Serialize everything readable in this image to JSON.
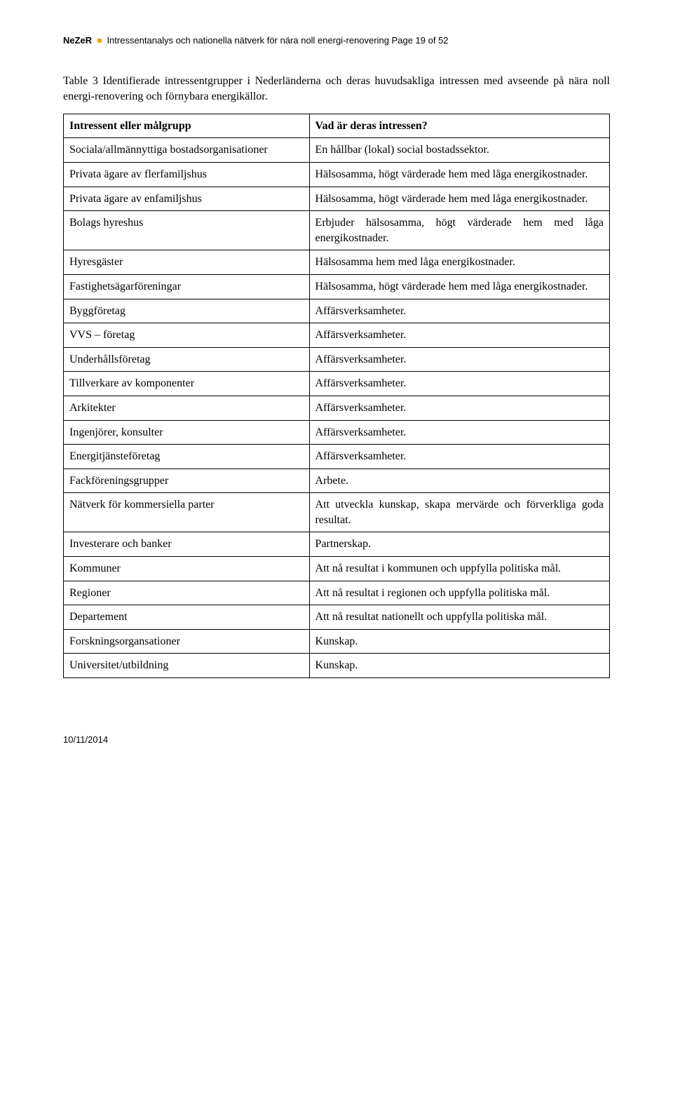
{
  "runningHead": {
    "brand": "NeZeR",
    "subtitle": "Intressentanalys och nationella nätverk för nära noll energi-renovering",
    "pageLabel": "Page 19 of 52"
  },
  "caption": "Table 3 Identifierade intressentgrupper i Nederländerna och deras huvudsakliga intressen med avseende på nära noll energi-renovering och förnybara energikällor.",
  "table": {
    "header": {
      "left": "Intressent eller målgrupp",
      "right": "Vad är deras intressen?"
    },
    "rows": [
      {
        "left": "Sociala/allmännyttiga bostadsorganisationer",
        "right": "En hållbar (lokal) social bostadssektor.",
        "nb_b": true
      },
      {
        "left": "Privata ägare av flerfamiljshus",
        "right": "Hälsosamma, högt värderade hem med låga energikostnader.",
        "nb_t": true,
        "nb_b": true
      },
      {
        "left": "Privata ägare av enfamiljshus",
        "right": "Hälsosamma, högt värderade hem med låga energikostnader.",
        "nb_t": true,
        "nb_b": true
      },
      {
        "left": "Bolags hyreshus",
        "right": "Erbjuder hälsosamma, högt värderade hem med låga energikostnader.",
        "nb_t": true,
        "nb_b": true
      },
      {
        "left": "Hyresgäster",
        "right": "Hälsosamma hem med låga energikostnader.",
        "nb_t": true
      },
      {
        "left": "Fastighetsägarföreningar",
        "right": "Hälsosamma, högt värderade hem med låga energikostnader.",
        "nb_b": true
      },
      {
        "left": "Byggföretag",
        "right": "Affärsverksamheter.",
        "nb_t": true
      },
      {
        "left": "VVS – företag",
        "right": "Affärsverksamheter."
      },
      {
        "left": "Underhållsföretag",
        "right": "Affärsverksamheter."
      },
      {
        "left": "Tillverkare av komponenter",
        "right": "Affärsverksamheter."
      },
      {
        "left": "Arkitekter",
        "right": "Affärsverksamheter."
      },
      {
        "left": "Ingenjörer, konsulter",
        "right": "Affärsverksamheter."
      },
      {
        "left": "Energitjänsteföretag",
        "right": "Affärsverksamheter."
      },
      {
        "left": "Fackföreningsgrupper",
        "right": "Arbete."
      },
      {
        "left": "Nätverk för kommersiella parter",
        "right": "Att utveckla kunskap, skapa mervärde och förverkliga goda resultat.",
        "nb_b": true
      },
      {
        "left": "Investerare och banker",
        "right": "Partnerskap.",
        "nb_t": true
      },
      {
        "left": "Kommuner",
        "right": "Att nå resultat i kommunen och uppfylla politiska mål.",
        "nb_b": true
      },
      {
        "left": "Regioner",
        "right": "Att nå resultat i regionen och uppfylla politiska mål.",
        "nb_t": true
      },
      {
        "left": "Departement",
        "right": "Att nå resultat nationellt och uppfylla politiska mål."
      },
      {
        "left": "Forskningsorgansationer",
        "right": "Kunskap."
      },
      {
        "left": "Universitet/utbildning",
        "right": "Kunskap."
      }
    ]
  },
  "footerDate": "10/11/2014",
  "colors": {
    "bullet": "#f4a300",
    "border": "#000000",
    "text": "#000000",
    "background": "#ffffff"
  },
  "typography": {
    "body_family": "Times New Roman",
    "head_family": "Arial",
    "body_size_pt": 12,
    "head_size_pt": 10
  }
}
